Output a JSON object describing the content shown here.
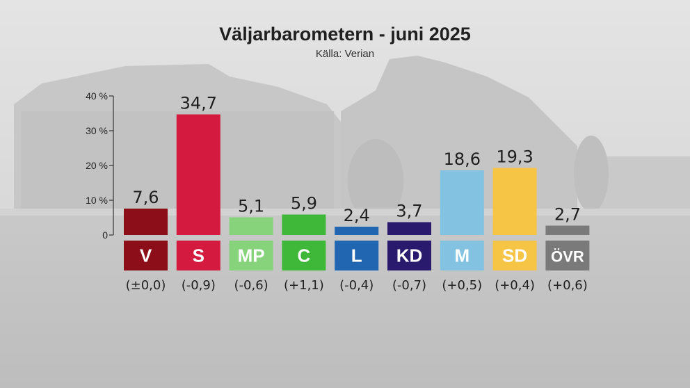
{
  "chart_data": {
    "type": "bar",
    "title": "Väljarbarometern - juni 2025",
    "subtitle": "Källa: Verian",
    "categories": [
      "V",
      "S",
      "MP",
      "C",
      "L",
      "KD",
      "M",
      "SD",
      "ÖVR"
    ],
    "values": [
      7.6,
      34.7,
      5.1,
      5.9,
      2.4,
      3.7,
      18.6,
      19.3,
      2.7
    ],
    "value_labels": [
      "7,6",
      "34,7",
      "5,1",
      "5,9",
      "2,4",
      "3,7",
      "18,6",
      "19,3",
      "2,7"
    ],
    "changes": [
      "(±0,0)",
      "(-0,9)",
      "(-0,6)",
      "(+1,1)",
      "(-0,4)",
      "(-0,7)",
      "(+0,5)",
      "(+0,4)",
      "(+0,6)"
    ],
    "colors": [
      "#8b0e19",
      "#d41a3e",
      "#86d37c",
      "#3fb83a",
      "#2166b0",
      "#2a1a6e",
      "#84c2e2",
      "#f6c546",
      "#7a7a7a"
    ],
    "ylim": [
      0,
      40
    ],
    "yticks": [
      0,
      10,
      20,
      30,
      40
    ],
    "ytick_labels": [
      "0",
      "10 %",
      "20 %",
      "30 %",
      "40 %"
    ],
    "grid": false,
    "legend": "none"
  }
}
